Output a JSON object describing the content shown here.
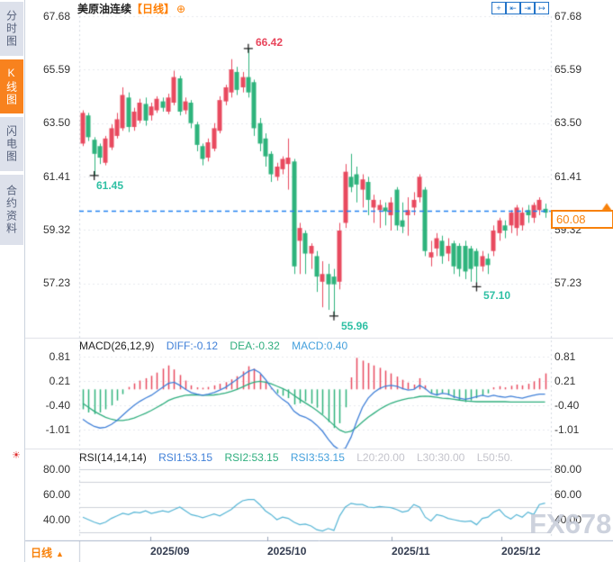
{
  "colors": {
    "up_red": "#e84a5f",
    "down_green": "#2eb37c",
    "accent_orange": "#f8810a",
    "title_orange": "#ff7e00",
    "tool_blue": "#2273c8",
    "dashed_price_line": "#2080f0",
    "diff_blue": "#4080d8",
    "dea_green": "#2fae7e",
    "rsi_line": "#55b5d5",
    "annotation_teal": "#2fc0a4",
    "annotation_red": "#e8455b",
    "watermark_gray": "#c6ccd9"
  },
  "sidebar": {
    "tabs": [
      {
        "label": "分时图",
        "active": false
      },
      {
        "label": "K线图",
        "active": true
      },
      {
        "label": "闪电图",
        "active": false
      },
      {
        "label": "合约资料",
        "active": false
      }
    ]
  },
  "header": {
    "title": "美原油连续",
    "period_tag": "【日线】",
    "plus_icon": "⊕",
    "tools": [
      {
        "name": "pan",
        "glyph": "+"
      },
      {
        "name": "compress-left",
        "glyph": "⇤"
      },
      {
        "name": "compress-right",
        "glyph": "⇥"
      },
      {
        "name": "shift-right",
        "glyph": "↦"
      }
    ]
  },
  "axis": {
    "price_ticks": [
      "67.68",
      "65.59",
      "63.50",
      "61.41",
      "59.32",
      "57.23"
    ],
    "macd_ticks": [
      "0.81",
      "0.21",
      "-0.40",
      "-1.01"
    ],
    "rsi_ticks": [
      "80.00",
      "60.00",
      "40.00"
    ]
  },
  "main_chart": {
    "last_price_label": "60.08",
    "annotations": {
      "high": "66.42",
      "low_aug": "61.45",
      "low_oct": "55.96",
      "low_nov": "57.10"
    }
  },
  "macd_header": {
    "name": "MACD(26,12,9)",
    "diff": "DIFF:-0.12",
    "dea": "DEA:-0.32",
    "macd": "MACD:0.40"
  },
  "rsi_header": {
    "name": "RSI(14,14,14)",
    "rsi1": "RSI1:53.15",
    "rsi2": "RSI2:53.15",
    "rsi3": "RSI3:53.15",
    "l20": "L20:20.00",
    "l30": "L30:30.00",
    "l50": "L50:50."
  },
  "bottom": {
    "period_label": "日线",
    "period_arrow": "▲",
    "dates": [
      "2025/09",
      "2025/10",
      "2025/11",
      "2025/12"
    ]
  },
  "watermark": "FX678",
  "chart_data": {
    "type": "candlestick",
    "title": "美原油连续 日线 (US Crude Oil Continuous, Daily)",
    "x_labels": [
      "2025/09",
      "2025/10",
      "2025/11",
      "2025/12"
    ],
    "price_panel": {
      "ylim": [
        55.5,
        67.68
      ],
      "yticks": [
        67.68,
        65.59,
        63.5,
        61.41,
        59.32,
        57.23
      ],
      "last_price": 60.08,
      "extremes": [
        {
          "i": 29,
          "price": 66.42
        },
        {
          "i": 2,
          "price": 61.45
        },
        {
          "i": 44,
          "price": 55.96
        },
        {
          "i": 69,
          "price": 57.1
        }
      ],
      "candles": [
        [
          63.9,
          62.7,
          64.0,
          62.6,
          "R"
        ],
        [
          63.8,
          62.95,
          63.9,
          62.8,
          "G"
        ],
        [
          62.85,
          62.3,
          62.95,
          61.45,
          "G"
        ],
        [
          62.6,
          62.15,
          62.7,
          61.9,
          "G"
        ],
        [
          62.9,
          61.95,
          63.0,
          61.85,
          "R"
        ],
        [
          63.3,
          62.55,
          63.45,
          62.45,
          "R"
        ],
        [
          63.65,
          63.0,
          63.9,
          62.9,
          "R"
        ],
        [
          64.6,
          63.3,
          64.9,
          63.2,
          "R"
        ],
        [
          64.5,
          63.35,
          64.7,
          63.15,
          "G"
        ],
        [
          63.95,
          63.35,
          64.1,
          63.2,
          "R"
        ],
        [
          64.3,
          63.6,
          64.45,
          63.5,
          "R"
        ],
        [
          64.25,
          63.6,
          64.5,
          63.4,
          "G"
        ],
        [
          64.15,
          63.8,
          64.3,
          63.6,
          "R"
        ],
        [
          64.45,
          64.0,
          64.55,
          63.9,
          "R"
        ],
        [
          64.35,
          64.1,
          64.5,
          63.95,
          "G"
        ],
        [
          64.5,
          63.95,
          64.65,
          63.85,
          "R"
        ],
        [
          65.3,
          64.3,
          65.55,
          64.2,
          "R"
        ],
        [
          65.25,
          63.95,
          65.35,
          63.8,
          "G"
        ],
        [
          64.35,
          64.0,
          64.5,
          63.85,
          "R"
        ],
        [
          64.3,
          63.5,
          64.4,
          63.3,
          "G"
        ],
        [
          63.45,
          62.65,
          63.55,
          62.4,
          "G"
        ],
        [
          62.6,
          62.1,
          62.7,
          61.85,
          "G"
        ],
        [
          62.75,
          62.15,
          62.9,
          62.0,
          "R"
        ],
        [
          63.3,
          62.5,
          63.5,
          62.4,
          "R"
        ],
        [
          64.4,
          63.2,
          64.55,
          63.1,
          "R"
        ],
        [
          64.9,
          64.35,
          65.0,
          64.2,
          "R"
        ],
        [
          65.6,
          64.7,
          66.0,
          64.5,
          "R"
        ],
        [
          65.5,
          64.8,
          65.7,
          64.6,
          "G"
        ],
        [
          65.3,
          64.9,
          65.5,
          64.7,
          "R"
        ],
        [
          65.3,
          64.7,
          66.42,
          64.5,
          "G"
        ],
        [
          65.1,
          63.3,
          65.2,
          63.0,
          "G"
        ],
        [
          63.5,
          62.7,
          63.7,
          62.4,
          "G"
        ],
        [
          62.9,
          62.2,
          63.1,
          61.8,
          "G"
        ],
        [
          62.3,
          61.5,
          62.4,
          61.2,
          "G"
        ],
        [
          61.8,
          61.4,
          61.95,
          61.25,
          "R"
        ],
        [
          62.1,
          61.7,
          62.2,
          61.5,
          "R"
        ],
        [
          62.15,
          61.9,
          62.9,
          60.9,
          "R"
        ],
        [
          62.0,
          57.9,
          62.1,
          57.6,
          "G"
        ],
        [
          59.4,
          58.9,
          59.6,
          57.6,
          "R"
        ],
        [
          59.2,
          58.4,
          59.3,
          57.6,
          "G"
        ],
        [
          58.7,
          58.4,
          58.8,
          57.8,
          "R"
        ],
        [
          58.3,
          57.5,
          58.5,
          56.9,
          "G"
        ],
        [
          57.6,
          57.3,
          58.1,
          56.3,
          "R"
        ],
        [
          57.6,
          57.2,
          58.0,
          56.2,
          "G"
        ],
        [
          57.5,
          57.2,
          57.8,
          55.96,
          "G"
        ],
        [
          59.3,
          57.3,
          59.6,
          57.0,
          "R"
        ],
        [
          61.6,
          59.6,
          61.9,
          59.4,
          "R"
        ],
        [
          61.4,
          61.0,
          62.3,
          60.8,
          "G"
        ],
        [
          61.5,
          61.1,
          61.8,
          60.4,
          "G"
        ],
        [
          61.3,
          60.9,
          61.5,
          60.2,
          "R"
        ],
        [
          61.2,
          60.5,
          61.4,
          59.9,
          "G"
        ],
        [
          60.5,
          60.2,
          60.7,
          59.6,
          "R"
        ],
        [
          60.3,
          60.1,
          60.5,
          59.4,
          "R"
        ],
        [
          60.2,
          60.05,
          60.4,
          59.5,
          "G"
        ],
        [
          60.4,
          59.9,
          60.6,
          59.3,
          "R"
        ],
        [
          60.9,
          59.5,
          61.0,
          59.3,
          "G"
        ],
        [
          59.7,
          59.45,
          60.4,
          59.2,
          "G"
        ],
        [
          60.1,
          59.9,
          60.6,
          59.1,
          "R"
        ],
        [
          60.5,
          60.2,
          60.8,
          59.9,
          "R"
        ],
        [
          61.4,
          60.6,
          61.5,
          60.4,
          "R"
        ],
        [
          60.9,
          58.5,
          61.0,
          58.3,
          "G"
        ],
        [
          58.45,
          58.25,
          58.9,
          57.9,
          "R"
        ],
        [
          59.0,
          58.6,
          59.2,
          58.3,
          "R"
        ],
        [
          58.9,
          58.3,
          59.1,
          58.0,
          "G"
        ],
        [
          58.7,
          58.4,
          59.0,
          58.1,
          "R"
        ],
        [
          58.8,
          57.9,
          58.9,
          57.6,
          "G"
        ],
        [
          58.7,
          57.8,
          58.8,
          57.5,
          "G"
        ],
        [
          58.7,
          57.7,
          58.9,
          57.4,
          "G"
        ],
        [
          58.6,
          57.8,
          58.7,
          57.3,
          "G"
        ],
        [
          58.5,
          57.9,
          58.6,
          57.1,
          "G"
        ],
        [
          58.3,
          57.9,
          58.5,
          57.7,
          "R"
        ],
        [
          58.2,
          57.95,
          58.4,
          57.6,
          "G"
        ],
        [
          59.3,
          58.5,
          59.5,
          58.3,
          "R"
        ],
        [
          59.7,
          59.2,
          59.8,
          58.9,
          "R"
        ],
        [
          59.5,
          59.3,
          59.7,
          59.0,
          "G"
        ],
        [
          60.0,
          59.5,
          60.1,
          59.2,
          "R"
        ],
        [
          60.2,
          59.4,
          60.3,
          59.1,
          "R"
        ],
        [
          60.0,
          59.5,
          60.2,
          59.3,
          "R"
        ],
        [
          60.1,
          59.9,
          60.3,
          59.6,
          "G"
        ],
        [
          60.3,
          59.8,
          60.4,
          59.6,
          "R"
        ],
        [
          60.5,
          60.1,
          60.6,
          59.9,
          "R"
        ],
        [
          60.15,
          60.0,
          60.35,
          59.8,
          "G"
        ]
      ]
    },
    "macd_panel": {
      "type": "bar",
      "yticks": [
        0.81,
        0.21,
        -0.4,
        -1.01
      ],
      "histogram": [
        -0.5,
        -0.58,
        -0.62,
        -0.58,
        -0.5,
        -0.4,
        -0.28,
        -0.12,
        0.06,
        0.15,
        0.22,
        0.28,
        0.34,
        0.42,
        0.52,
        0.6,
        0.5,
        0.36,
        0.22,
        0.1,
        0.05,
        0.04,
        0.06,
        0.1,
        0.14,
        0.18,
        0.25,
        0.33,
        0.45,
        0.58,
        0.52,
        0.38,
        0.2,
        0.02,
        -0.1,
        -0.16,
        -0.22,
        -0.38,
        -0.35,
        -0.3,
        -0.36,
        -0.46,
        -0.62,
        -0.82,
        -0.97,
        -0.85,
        -0.45,
        0.3,
        0.79,
        0.72,
        0.66,
        0.6,
        0.54,
        0.47,
        0.4,
        0.32,
        0.24,
        0.17,
        0.12,
        0.28,
        0.1,
        -0.1,
        -0.16,
        -0.1,
        -0.15,
        -0.22,
        -0.28,
        -0.32,
        -0.28,
        -0.22,
        -0.16,
        -0.1,
        0.05,
        0.08,
        0.05,
        0.09,
        0.12,
        0.1,
        0.14,
        0.2,
        0.28,
        0.4
      ],
      "diff": [
        -0.75,
        -0.85,
        -0.93,
        -0.97,
        -0.95,
        -0.88,
        -0.78,
        -0.65,
        -0.52,
        -0.4,
        -0.3,
        -0.22,
        -0.15,
        -0.05,
        0.05,
        0.15,
        0.18,
        0.1,
        0.0,
        -0.08,
        -0.12,
        -0.15,
        -0.12,
        -0.08,
        -0.02,
        0.05,
        0.15,
        0.25,
        0.35,
        0.45,
        0.5,
        0.42,
        0.25,
        0.05,
        -0.12,
        -0.25,
        -0.35,
        -0.55,
        -0.65,
        -0.7,
        -0.78,
        -0.9,
        -1.05,
        -1.25,
        -1.42,
        -1.52,
        -1.48,
        -1.2,
        -0.8,
        -0.45,
        -0.22,
        -0.08,
        0.02,
        0.08,
        0.1,
        0.08,
        0.02,
        -0.02,
        0.0,
        0.1,
        0.02,
        -0.1,
        -0.14,
        -0.1,
        -0.12,
        -0.18,
        -0.22,
        -0.25,
        -0.22,
        -0.18,
        -0.15,
        -0.18,
        -0.15,
        -0.18,
        -0.2,
        -0.17,
        -0.2,
        -0.22,
        -0.18,
        -0.15,
        -0.12,
        -0.12
      ],
      "dea": [
        -0.35,
        -0.45,
        -0.55,
        -0.63,
        -0.7,
        -0.75,
        -0.78,
        -0.78,
        -0.76,
        -0.72,
        -0.66,
        -0.6,
        -0.53,
        -0.45,
        -0.37,
        -0.28,
        -0.22,
        -0.18,
        -0.15,
        -0.14,
        -0.14,
        -0.15,
        -0.15,
        -0.14,
        -0.12,
        -0.09,
        -0.05,
        0.0,
        0.06,
        0.13,
        0.18,
        0.2,
        0.18,
        0.14,
        0.08,
        0.02,
        -0.05,
        -0.15,
        -0.25,
        -0.34,
        -0.43,
        -0.53,
        -0.64,
        -0.77,
        -0.9,
        -1.02,
        -1.08,
        -1.05,
        -0.95,
        -0.82,
        -0.7,
        -0.6,
        -0.5,
        -0.42,
        -0.35,
        -0.3,
        -0.26,
        -0.23,
        -0.21,
        -0.18,
        -0.17,
        -0.18,
        -0.2,
        -0.22,
        -0.23,
        -0.25,
        -0.27,
        -0.29,
        -0.3,
        -0.31,
        -0.31,
        -0.31,
        -0.31,
        -0.31,
        -0.31,
        -0.32,
        -0.32,
        -0.32,
        -0.32,
        -0.32,
        -0.32,
        -0.32
      ]
    },
    "rsi_panel": {
      "type": "line",
      "yticks": [
        80,
        60,
        40
      ],
      "level_lines": [
        80,
        70,
        50,
        30
      ],
      "values": [
        42,
        40,
        38,
        36.5,
        38,
        41,
        43,
        45,
        44,
        46,
        45.5,
        47,
        45,
        46,
        47,
        46,
        48,
        50,
        47,
        44,
        43,
        41.5,
        43,
        44.5,
        43,
        45.5,
        48,
        52,
        55,
        56,
        56,
        52,
        47,
        44,
        40,
        42,
        41,
        38,
        36,
        36.5,
        35,
        32,
        31,
        33,
        31.5,
        43,
        50,
        53,
        52,
        52,
        50,
        49.5,
        50.5,
        50,
        49.5,
        48,
        46,
        47,
        52,
        50,
        42,
        39,
        44,
        43,
        41,
        40,
        39,
        38.5,
        39,
        36,
        41,
        42,
        46,
        48,
        43,
        40.5,
        44,
        42,
        46,
        44,
        52,
        53.15
      ]
    }
  }
}
